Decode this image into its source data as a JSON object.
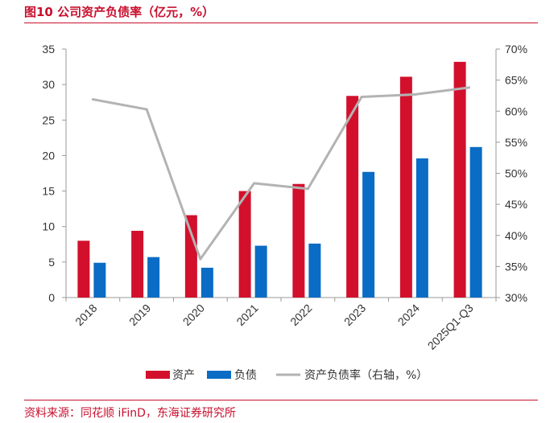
{
  "figure": {
    "title": "图10  公司资产负债率（亿元，%）",
    "source": "资料来源：同花顺 iFinD，东海证券研究所"
  },
  "colors": {
    "assets": "#d2102c",
    "liabilities": "#0a6cc4",
    "ratio": "#b3b3b3",
    "accent": "#c8102e"
  },
  "chart_data": {
    "type": "bar",
    "categories": [
      "2018",
      "2019",
      "2020",
      "2021",
      "2022",
      "2023",
      "2024",
      "2025Q1-Q3"
    ],
    "series": [
      {
        "name": "资产",
        "type": "bar",
        "axis": "left",
        "values": [
          8.0,
          9.4,
          11.6,
          15.0,
          16.0,
          28.4,
          31.1,
          33.2
        ]
      },
      {
        "name": "负债",
        "type": "bar",
        "axis": "left",
        "values": [
          4.9,
          5.7,
          4.2,
          7.3,
          7.6,
          17.7,
          19.6,
          21.2
        ]
      },
      {
        "name": "资产负债率（右轴，%）",
        "type": "line",
        "axis": "right",
        "values": [
          61.9,
          60.3,
          36.2,
          48.4,
          47.5,
          62.3,
          62.7,
          63.8
        ]
      }
    ],
    "y_left": {
      "min": 0,
      "max": 35,
      "ticks": [
        "0",
        "5",
        "10",
        "15",
        "20",
        "25",
        "30",
        "35"
      ]
    },
    "y_right": {
      "min": 30,
      "max": 70,
      "ticks": [
        "30%",
        "35%",
        "40%",
        "45%",
        "50%",
        "55%",
        "60%",
        "65%",
        "70%"
      ]
    },
    "legend_position": "bottom",
    "grid": false
  }
}
